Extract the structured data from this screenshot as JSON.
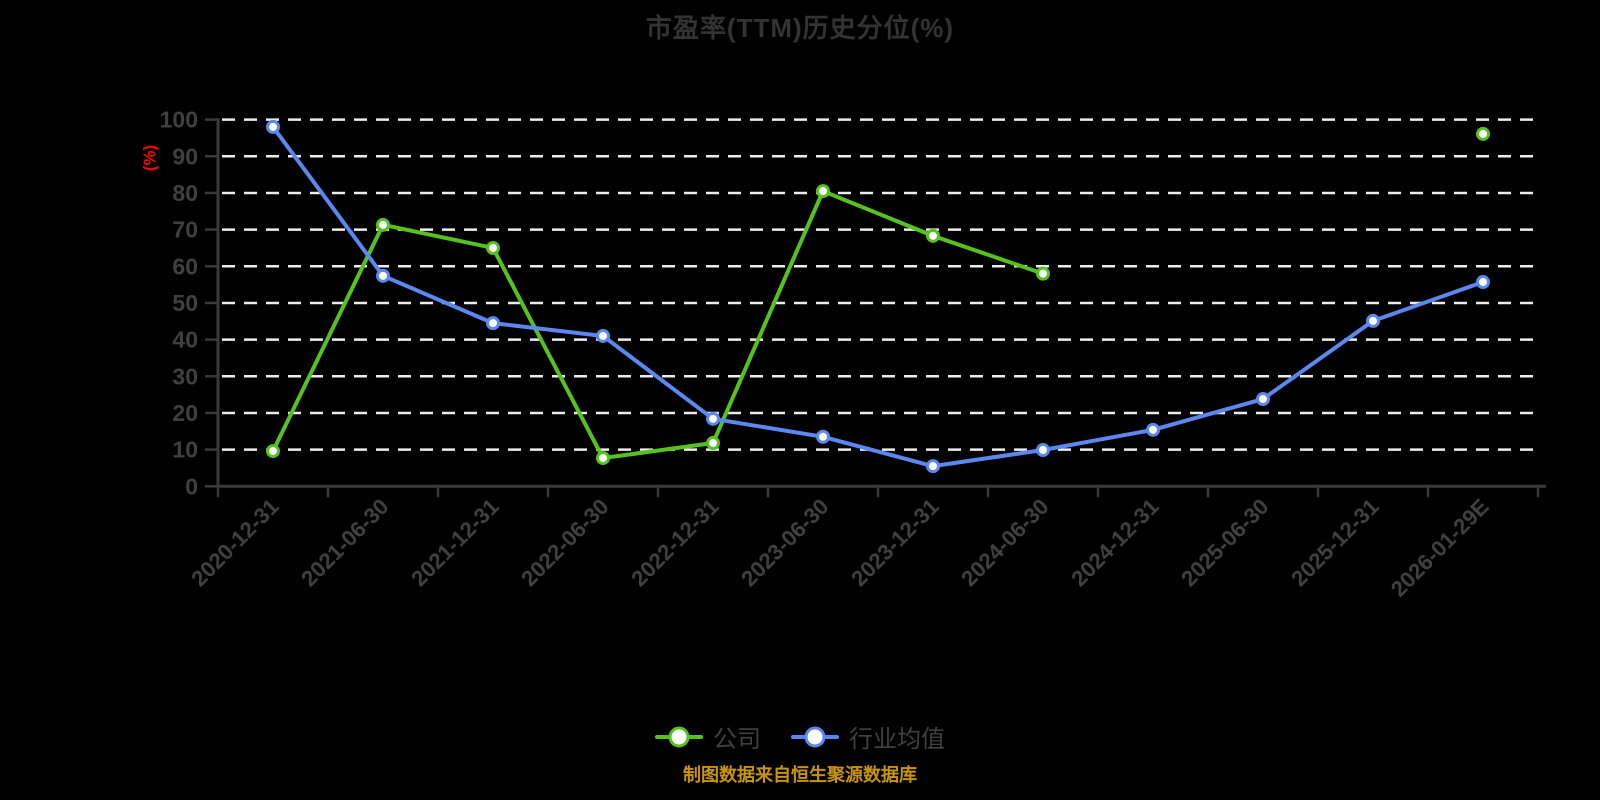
{
  "title": "市盈率(TTM)历史分位(%)",
  "footer": "制图数据来自恒生聚源数据库",
  "colors": {
    "background": "#000000",
    "title": "#333333",
    "axis_line": "#3a3a3a",
    "axis_label": "#404040",
    "grid": "#ececec",
    "unit_label": "#ff0000",
    "marker_fill": "#ffffff",
    "footer": "#c9940d",
    "company_series": "#55c21e",
    "industry_series": "#5a87f0"
  },
  "chart_data": {
    "type": "line",
    "title": "市盈率(TTM)历史分位(%)",
    "xlabel": "",
    "ylabel": "(%)",
    "ylim": [
      0,
      100
    ],
    "y_ticks": [
      0,
      10,
      20,
      30,
      40,
      50,
      60,
      70,
      80,
      90,
      100
    ],
    "grid": true,
    "grid_style": "dashed",
    "legend_position": "bottom",
    "categories": [
      "2020-12-31",
      "2021-06-30",
      "2021-12-31",
      "2022-06-30",
      "2022-12-31",
      "2023-06-30",
      "2023-12-31",
      "2024-06-30",
      "2024-12-31",
      "2025-06-30",
      "2025-12-31",
      "2026-01-29E"
    ],
    "series": [
      {
        "name": "公司",
        "id": "company",
        "color": "#55c21e",
        "values": [
          9.6,
          71.3,
          65.0,
          7.7,
          11.8,
          80.5,
          68.3,
          58.0,
          null,
          null,
          null,
          96.1
        ]
      },
      {
        "name": "行业均值",
        "id": "industry",
        "color": "#5a87f0",
        "values": [
          98.0,
          57.4,
          44.5,
          41.0,
          18.4,
          13.5,
          5.5,
          9.9,
          15.4,
          23.8,
          45.1,
          55.7
        ]
      }
    ]
  },
  "legend": {
    "items": [
      {
        "label": "公司"
      },
      {
        "label": "行业均值"
      }
    ]
  }
}
